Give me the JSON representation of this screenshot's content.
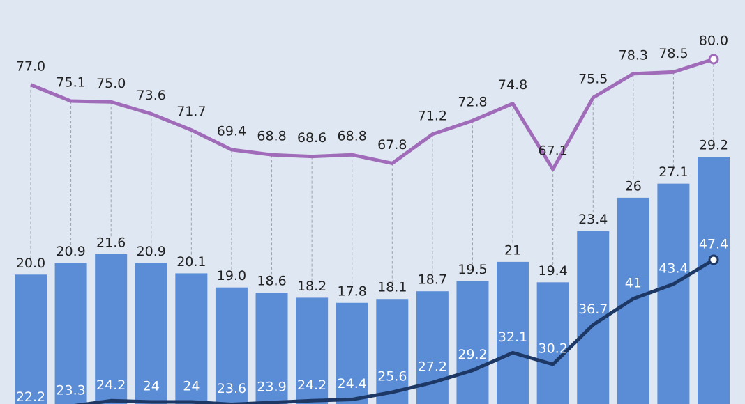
{
  "chart_data": {
    "type": "bar",
    "categories": [
      null,
      null,
      null,
      null,
      null,
      null,
      null,
      null,
      null,
      null,
      null,
      null,
      null,
      null,
      null,
      null,
      null,
      null
    ],
    "series": [
      {
        "type": "bar",
        "color": "#5a8dd6",
        "values": [
          20.0,
          20.9,
          21.6,
          20.9,
          20.1,
          19.0,
          18.6,
          18.2,
          17.8,
          18.1,
          18.7,
          19.5,
          21,
          19.4,
          23.4,
          26,
          27.1,
          29.2
        ],
        "value_labels": [
          "20.0",
          "20.9",
          "21.6",
          "20.9",
          "20.1",
          "19.0",
          "18.6",
          "18.2",
          "17.8",
          "18.1",
          "18.7",
          "19.5",
          "21",
          "19.4",
          "23.4",
          "26",
          "27.1",
          "29.2"
        ]
      },
      {
        "type": "line",
        "color": "#a06bb8",
        "values": [
          77.0,
          75.1,
          75.0,
          73.6,
          71.7,
          69.4,
          68.8,
          68.6,
          68.8,
          67.8,
          71.2,
          72.8,
          74.8,
          67.1,
          75.5,
          78.3,
          78.5,
          80.0
        ],
        "value_labels": [
          "77.0",
          "75.1",
          "75.0",
          "73.6",
          "71.7",
          "69.4",
          "68.8",
          "68.6",
          "68.8",
          "67.8",
          "71.2",
          "72.8",
          "74.8",
          "67.1",
          "75.5",
          "78.3",
          "78.5",
          "80.0"
        ]
      },
      {
        "type": "line",
        "color": "#1e3865",
        "values": [
          22.2,
          23.3,
          24.2,
          24,
          24,
          23.6,
          23.9,
          24.2,
          24.4,
          25.6,
          27.2,
          29.2,
          32.1,
          30.2,
          36.7,
          41,
          43.4,
          47.4
        ],
        "value_labels": [
          "22.2",
          "23.3",
          "24.2",
          "24",
          "24",
          "23.6",
          "23.9",
          "24.2",
          "24.4",
          "25.6",
          "27.2",
          "29.2",
          "32.1",
          "30.2",
          "36.7",
          "41",
          "43.4",
          "47.4"
        ]
      }
    ]
  }
}
